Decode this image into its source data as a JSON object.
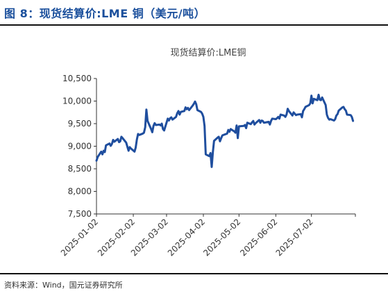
{
  "figure": {
    "title": "图 8：现货结算价:LME 铜（美元/吨）",
    "source": "资料来源：Wind，国元证券研究所"
  },
  "colors": {
    "line": "#1f4e9e",
    "title": "#1a4f9c",
    "axis": "#333333"
  },
  "chart_data": {
    "type": "line",
    "title": "现货结算价:LME铜",
    "xlabel": "",
    "ylabel": "",
    "ylim": [
      7500,
      10500
    ],
    "yticks": [
      7500,
      8000,
      8500,
      9000,
      9500,
      10000,
      10500
    ],
    "ytick_labels": [
      "7,500",
      "8,000",
      "8,500",
      "9,000",
      "9,500",
      "10,000",
      "10,500"
    ],
    "xlim": [
      "2025-01-02",
      "2025-08-08"
    ],
    "xtick_labels": [
      "2025-01-02",
      "2025-02-02",
      "2025-03-02",
      "2025-04-02",
      "2025-05-02",
      "2025-06-02",
      "2025-07-02"
    ],
    "grid": false,
    "legend": "none",
    "series": [
      {
        "points": [
          [
            "2025-01-02",
            8680
          ],
          [
            "2025-01-03",
            8760
          ],
          [
            "2025-01-06",
            8880
          ],
          [
            "2025-01-07",
            8820
          ],
          [
            "2025-01-08",
            8900
          ],
          [
            "2025-01-09",
            8870
          ],
          [
            "2025-01-10",
            9020
          ],
          [
            "2025-01-13",
            9060
          ],
          [
            "2025-01-14",
            9010
          ],
          [
            "2025-01-15",
            9050
          ],
          [
            "2025-01-16",
            9140
          ],
          [
            "2025-01-17",
            9100
          ],
          [
            "2025-01-20",
            9160
          ],
          [
            "2025-01-21",
            9090
          ],
          [
            "2025-01-22",
            9110
          ],
          [
            "2025-01-23",
            9210
          ],
          [
            "2025-01-24",
            9180
          ],
          [
            "2025-01-27",
            9080
          ],
          [
            "2025-01-28",
            8990
          ],
          [
            "2025-01-29",
            8900
          ],
          [
            "2025-01-30",
            8980
          ],
          [
            "2025-01-31",
            8950
          ],
          [
            "2025-02-03",
            8880
          ],
          [
            "2025-02-04",
            8970
          ],
          [
            "2025-02-05",
            9150
          ],
          [
            "2025-02-06",
            9270
          ],
          [
            "2025-02-07",
            9250
          ],
          [
            "2025-02-10",
            9280
          ],
          [
            "2025-02-11",
            9300
          ],
          [
            "2025-02-12",
            9420
          ],
          [
            "2025-02-13",
            9810
          ],
          [
            "2025-02-14",
            9560
          ],
          [
            "2025-02-17",
            9380
          ],
          [
            "2025-02-18",
            9310
          ],
          [
            "2025-02-19",
            9450
          ],
          [
            "2025-02-20",
            9510
          ],
          [
            "2025-02-21",
            9470
          ],
          [
            "2025-02-24",
            9480
          ],
          [
            "2025-02-25",
            9460
          ],
          [
            "2025-02-26",
            9500
          ],
          [
            "2025-02-27",
            9380
          ],
          [
            "2025-02-28",
            9350
          ],
          [
            "2025-03-03",
            9610
          ],
          [
            "2025-03-04",
            9570
          ],
          [
            "2025-03-05",
            9620
          ],
          [
            "2025-03-06",
            9640
          ],
          [
            "2025-03-07",
            9590
          ],
          [
            "2025-03-10",
            9650
          ],
          [
            "2025-03-11",
            9730
          ],
          [
            "2025-03-12",
            9780
          ],
          [
            "2025-03-13",
            9700
          ],
          [
            "2025-03-14",
            9760
          ],
          [
            "2025-03-17",
            9780
          ],
          [
            "2025-03-18",
            9860
          ],
          [
            "2025-03-19",
            9820
          ],
          [
            "2025-03-20",
            9850
          ],
          [
            "2025-03-21",
            9800
          ],
          [
            "2025-03-24",
            9900
          ],
          [
            "2025-03-25",
            9940
          ],
          [
            "2025-03-26",
            9990
          ],
          [
            "2025-03-27",
            9930
          ],
          [
            "2025-03-28",
            9800
          ],
          [
            "2025-03-31",
            9760
          ],
          [
            "2025-04-01",
            9720
          ],
          [
            "2025-04-02",
            9650
          ],
          [
            "2025-04-03",
            9450
          ],
          [
            "2025-04-04",
            8820
          ],
          [
            "2025-04-07",
            8780
          ],
          [
            "2025-04-08",
            8850
          ],
          [
            "2025-04-09",
            8540
          ],
          [
            "2025-04-10",
            8870
          ],
          [
            "2025-04-11",
            9120
          ],
          [
            "2025-04-14",
            9190
          ],
          [
            "2025-04-15",
            9210
          ],
          [
            "2025-04-16",
            9110
          ],
          [
            "2025-04-17",
            9180
          ],
          [
            "2025-04-18",
            9240
          ],
          [
            "2025-04-22",
            9280
          ],
          [
            "2025-04-23",
            9360
          ],
          [
            "2025-04-24",
            9320
          ],
          [
            "2025-04-25",
            9380
          ],
          [
            "2025-04-28",
            9330
          ],
          [
            "2025-04-29",
            9300
          ],
          [
            "2025-04-30",
            9460
          ],
          [
            "2025-05-01",
            9180
          ],
          [
            "2025-05-02",
            9440
          ],
          [
            "2025-05-06",
            9450
          ],
          [
            "2025-05-07",
            9470
          ],
          [
            "2025-05-08",
            9400
          ],
          [
            "2025-05-09",
            9520
          ],
          [
            "2025-05-12",
            9490
          ],
          [
            "2025-05-13",
            9530
          ],
          [
            "2025-05-14",
            9560
          ],
          [
            "2025-05-15",
            9480
          ],
          [
            "2025-05-16",
            9510
          ],
          [
            "2025-05-19",
            9580
          ],
          [
            "2025-05-20",
            9520
          ],
          [
            "2025-05-21",
            9570
          ],
          [
            "2025-05-22",
            9560
          ],
          [
            "2025-05-23",
            9520
          ],
          [
            "2025-05-27",
            9540
          ],
          [
            "2025-05-28",
            9480
          ],
          [
            "2025-05-29",
            9560
          ],
          [
            "2025-05-30",
            9610
          ],
          [
            "2025-06-02",
            9600
          ],
          [
            "2025-06-03",
            9620
          ],
          [
            "2025-06-04",
            9650
          ],
          [
            "2025-06-05",
            9610
          ],
          [
            "2025-06-06",
            9700
          ],
          [
            "2025-06-09",
            9680
          ],
          [
            "2025-06-10",
            9650
          ],
          [
            "2025-06-11",
            9700
          ],
          [
            "2025-06-12",
            9830
          ],
          [
            "2025-06-13",
            9780
          ],
          [
            "2025-06-16",
            9680
          ],
          [
            "2025-06-17",
            9750
          ],
          [
            "2025-06-18",
            9720
          ],
          [
            "2025-06-19",
            9690
          ],
          [
            "2025-06-20",
            9700
          ],
          [
            "2025-06-23",
            9710
          ],
          [
            "2025-06-24",
            9640
          ],
          [
            "2025-06-25",
            9780
          ],
          [
            "2025-06-26",
            9820
          ],
          [
            "2025-06-27",
            9870
          ],
          [
            "2025-06-30",
            9910
          ],
          [
            "2025-07-01",
            9950
          ],
          [
            "2025-07-02",
            10120
          ],
          [
            "2025-07-03",
            9950
          ],
          [
            "2025-07-04",
            10050
          ],
          [
            "2025-07-07",
            10020
          ],
          [
            "2025-07-08",
            10140
          ],
          [
            "2025-07-09",
            10030
          ],
          [
            "2025-07-10",
            10020
          ],
          [
            "2025-07-11",
            10080
          ],
          [
            "2025-07-14",
            9910
          ],
          [
            "2025-07-15",
            9700
          ],
          [
            "2025-07-16",
            9630
          ],
          [
            "2025-07-17",
            9590
          ],
          [
            "2025-07-18",
            9600
          ],
          [
            "2025-07-21",
            9570
          ],
          [
            "2025-07-22",
            9600
          ],
          [
            "2025-07-23",
            9680
          ],
          [
            "2025-07-24",
            9710
          ],
          [
            "2025-07-25",
            9790
          ],
          [
            "2025-07-28",
            9860
          ],
          [
            "2025-07-29",
            9870
          ],
          [
            "2025-07-30",
            9820
          ],
          [
            "2025-07-31",
            9790
          ],
          [
            "2025-08-01",
            9700
          ],
          [
            "2025-08-04",
            9690
          ],
          [
            "2025-08-05",
            9650
          ],
          [
            "2025-08-06",
            9560
          ]
        ]
      }
    ]
  }
}
